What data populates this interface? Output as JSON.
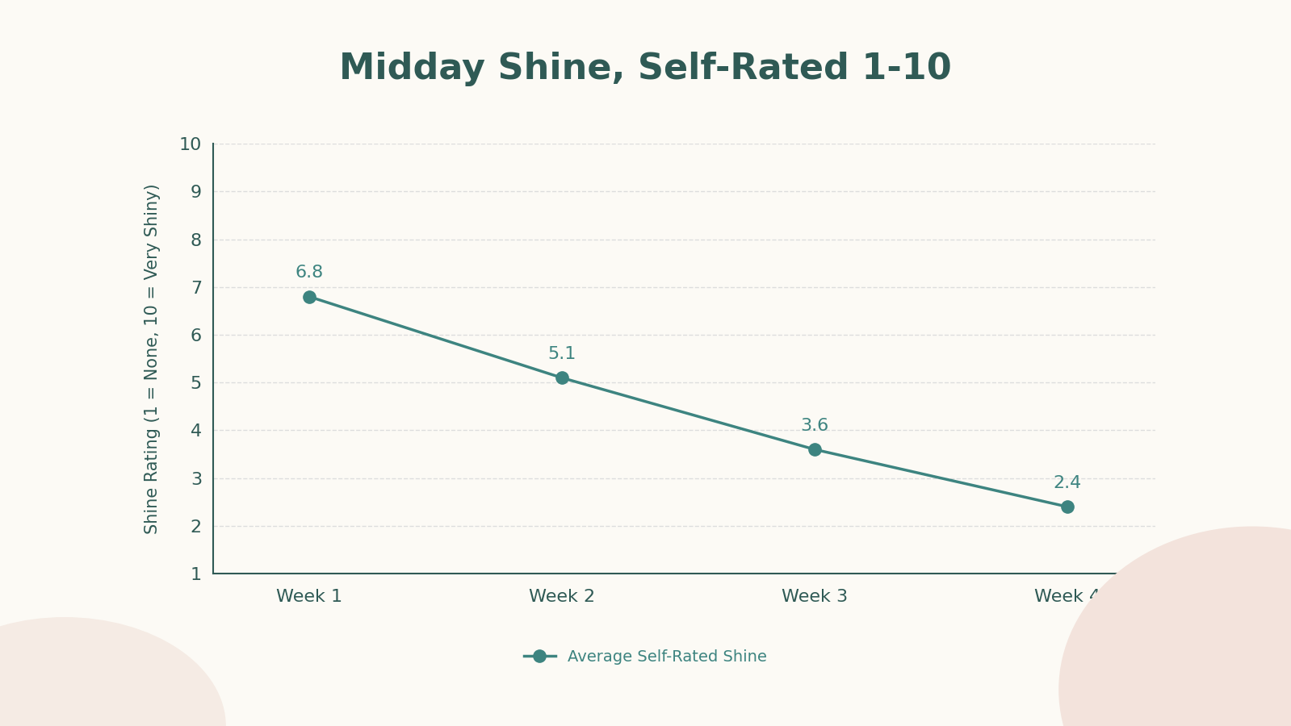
{
  "chart_data": {
    "type": "line",
    "title": "Midday Shine, Self-Rated 1-10",
    "y_label": "Shine Rating (1 = None, 10 = Very Shiny)",
    "categories": [
      "Week 1",
      "Week 2",
      "Week 3",
      "Week 4"
    ],
    "series": [
      {
        "name": "Average Self-Rated Shine",
        "color": "#3d8480",
        "values": [
          6.8,
          5.1,
          3.6,
          2.4
        ],
        "marker": "o",
        "line_style": "solid"
      }
    ],
    "ylim": [
      1,
      10
    ],
    "yticks": [
      1,
      2,
      3,
      4,
      5,
      6,
      7,
      8,
      9,
      10
    ],
    "grid": true,
    "data_labels": true,
    "legend": "lower center"
  }
}
